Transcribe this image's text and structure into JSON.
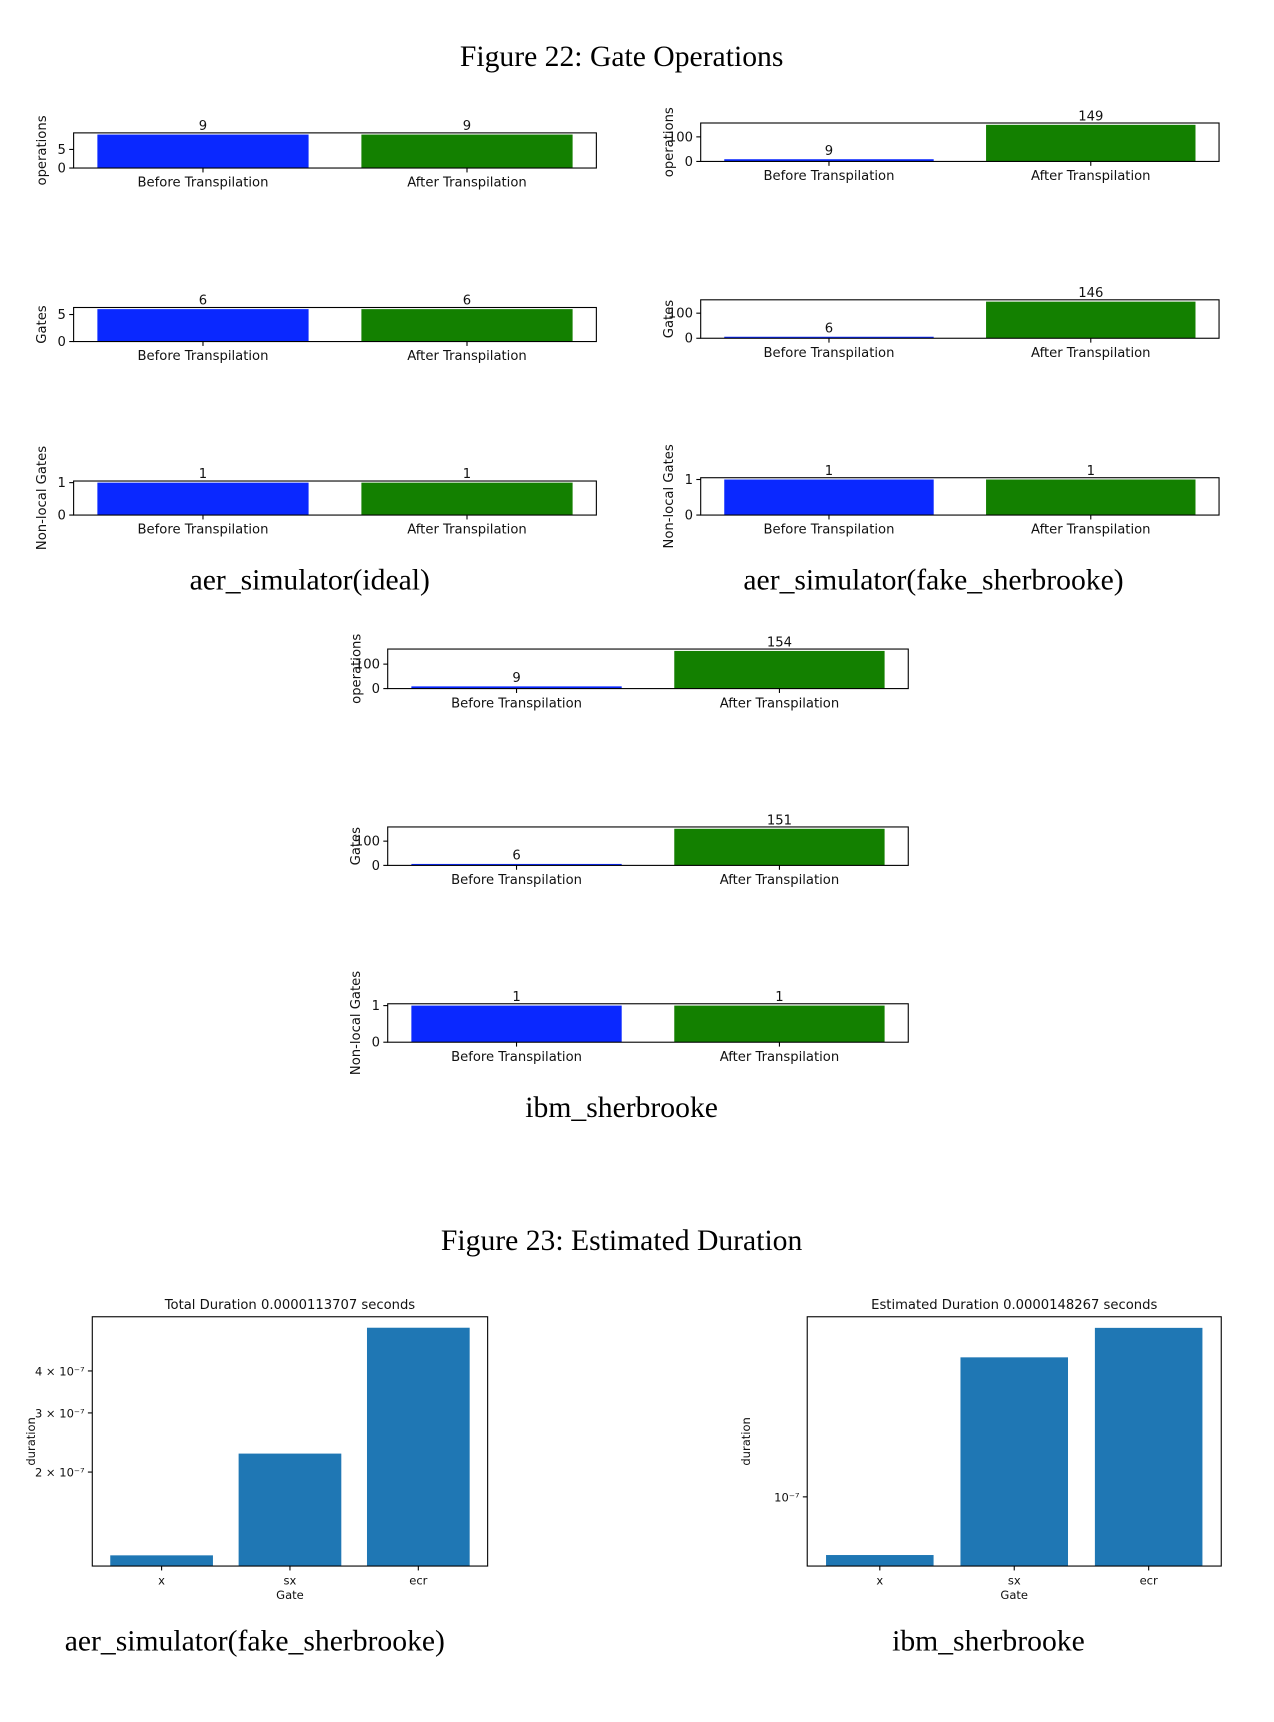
{
  "figures": [
    {
      "caption": "Figure 22: Gate Operations",
      "subcaptions": [
        "aer_simulator(ideal)",
        "aer_simulator(fake_sherbrooke)",
        "ibm_sherbrooke"
      ]
    },
    {
      "caption": "Figure 23: Estimated Duration",
      "subcaptions": [
        "aer_simulator(fake_sherbrooke)",
        "ibm_sherbrooke"
      ]
    }
  ],
  "chart_data": [
    {
      "type": "bar",
      "ylabel": "operations",
      "categories": [
        "Before Transpilation",
        "After Transpilation"
      ],
      "values": [
        9,
        9
      ],
      "colors": [
        "#0a28ff",
        "#138000"
      ],
      "ylim": [
        0,
        9.45
      ],
      "yticks": [
        0,
        5
      ]
    },
    {
      "type": "bar",
      "ylabel": "operations",
      "categories": [
        "Before Transpilation",
        "After Transpilation"
      ],
      "values": [
        9,
        149
      ],
      "colors": [
        "#0a28ff",
        "#138000"
      ],
      "ylim": [
        0,
        156.45
      ],
      "yticks": [
        0,
        100
      ]
    },
    {
      "type": "bar",
      "ylabel": "Gates",
      "categories": [
        "Before Transpilation",
        "After Transpilation"
      ],
      "values": [
        6,
        6
      ],
      "colors": [
        "#0a28ff",
        "#138000"
      ],
      "ylim": [
        0,
        6.3
      ],
      "yticks": [
        0,
        5
      ]
    },
    {
      "type": "bar",
      "ylabel": "Gates",
      "categories": [
        "Before Transpilation",
        "After Transpilation"
      ],
      "values": [
        6,
        146
      ],
      "colors": [
        "#0a28ff",
        "#138000"
      ],
      "ylim": [
        0,
        153.3
      ],
      "yticks": [
        0,
        100
      ]
    },
    {
      "type": "bar",
      "ylabel": "Non-local Gates",
      "categories": [
        "Before Transpilation",
        "After Transpilation"
      ],
      "values": [
        1,
        1
      ],
      "colors": [
        "#0a28ff",
        "#138000"
      ],
      "ylim": [
        0,
        1.05
      ],
      "yticks": [
        0,
        1
      ]
    },
    {
      "type": "bar",
      "ylabel": "Non-local Gates",
      "categories": [
        "Before Transpilation",
        "After Transpilation"
      ],
      "values": [
        1,
        1
      ],
      "colors": [
        "#0a28ff",
        "#138000"
      ],
      "ylim": [
        0,
        1.05
      ],
      "yticks": [
        0,
        1
      ]
    },
    {
      "type": "bar",
      "ylabel": "operations",
      "categories": [
        "Before Transpilation",
        "After Transpilation"
      ],
      "values": [
        9,
        154
      ],
      "colors": [
        "#0a28ff",
        "#138000"
      ],
      "ylim": [
        0,
        161.7
      ],
      "yticks": [
        0,
        100
      ]
    },
    {
      "type": "bar",
      "ylabel": "Gates",
      "categories": [
        "Before Transpilation",
        "After Transpilation"
      ],
      "values": [
        6,
        151
      ],
      "colors": [
        "#0a28ff",
        "#138000"
      ],
      "ylim": [
        0,
        158.55
      ],
      "yticks": [
        0,
        100
      ]
    },
    {
      "type": "bar",
      "ylabel": "Non-local Gates",
      "categories": [
        "Before Transpilation",
        "After Transpilation"
      ],
      "values": [
        1,
        1
      ],
      "colors": [
        "#0a28ff",
        "#138000"
      ],
      "ylim": [
        0,
        1.05
      ],
      "yticks": [
        0,
        1
      ]
    },
    {
      "type": "bar",
      "title": "Total Duration 0.0000113707 seconds",
      "xlabel": "Gate",
      "ylabel": "duration",
      "categories": [
        "x",
        "sx",
        "ecr"
      ],
      "values": [
        1.13e-07,
        2.27e-07,
        5.38e-07
      ],
      "color": "#1f77b4",
      "log_scale": true,
      "ylim": [
        1.05e-07,
        5.8e-07
      ],
      "yticks": [
        {
          "value": 2e-07,
          "label": "2 × 10⁻⁷"
        },
        {
          "value": 3e-07,
          "label": "3 × 10⁻⁷"
        },
        {
          "value": 4e-07,
          "label": "4 × 10⁻⁷"
        }
      ]
    },
    {
      "type": "bar",
      "title": "Estimated Duration 0.0000148267 seconds",
      "xlabel": "Gate",
      "ylabel": "duration",
      "categories": [
        "x",
        "sx",
        "ecr"
      ],
      "values": [
        5.64e-08,
        3.95e-07,
        5.28e-07
      ],
      "color": "#1f77b4",
      "log_scale": true,
      "ylim": [
        5.06e-08,
        5.89e-07
      ],
      "yticks": [
        {
          "value": 1e-07,
          "label": "10⁻⁷"
        }
      ]
    }
  ]
}
